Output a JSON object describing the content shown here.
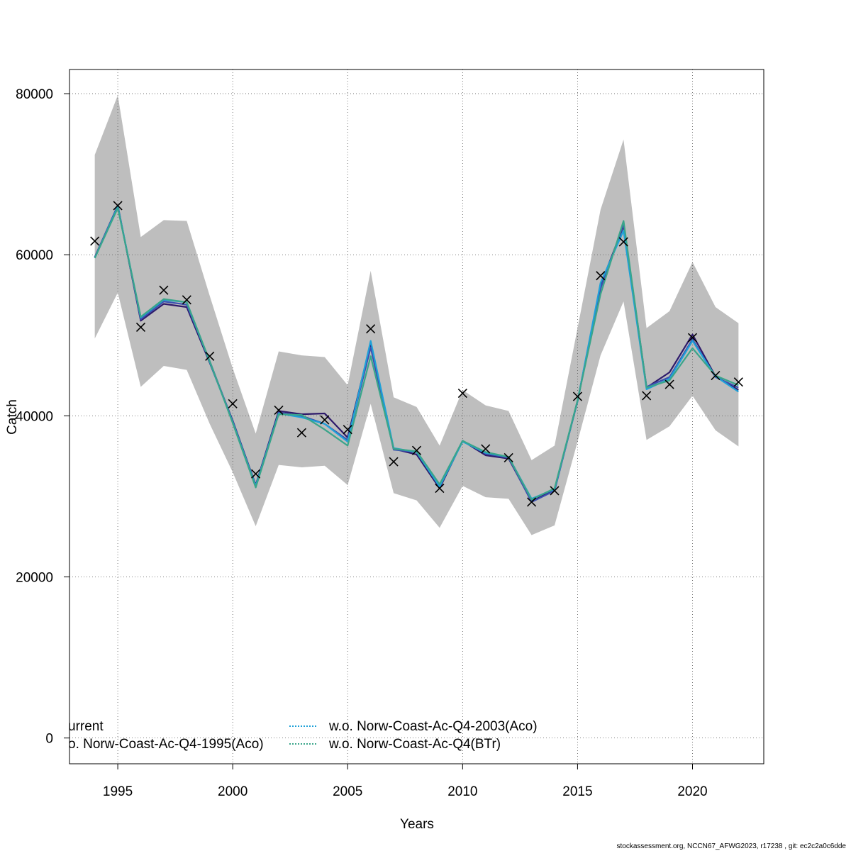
{
  "chart_data": {
    "type": "line",
    "xlabel": "Years",
    "ylabel": "Catch",
    "xlim": [
      1992.9,
      2023.1
    ],
    "ylim": [
      -3200,
      83000
    ],
    "x_ticks": [
      1995,
      2000,
      2005,
      2010,
      2015,
      2020
    ],
    "y_ticks": [
      0,
      20000,
      40000,
      60000,
      80000
    ],
    "grid": true,
    "x": [
      1994,
      1995,
      1996,
      1997,
      1998,
      1999,
      2000,
      2001,
      2002,
      2003,
      2004,
      2005,
      2006,
      2007,
      2008,
      2009,
      2010,
      2011,
      2012,
      2013,
      2014,
      2015,
      2016,
      2017,
      2018,
      2019,
      2020,
      2021,
      2022
    ],
    "band": {
      "color": "#bebebe",
      "lower": [
        49600,
        55300,
        43600,
        46200,
        45700,
        39000,
        33000,
        26300,
        33900,
        33600,
        33800,
        31400,
        41500,
        30400,
        29500,
        26100,
        31300,
        29900,
        29700,
        25200,
        26400,
        36800,
        47500,
        54200,
        37000,
        38700,
        42500,
        38200,
        36200
      ],
      "upper": [
        72400,
        79800,
        62200,
        64300,
        64200,
        54900,
        45900,
        37800,
        48000,
        47500,
        47300,
        43800,
        58000,
        42300,
        41100,
        36300,
        43200,
        41300,
        40600,
        34500,
        36300,
        50900,
        65600,
        74300,
        50900,
        53000,
        59100,
        53500,
        51500
      ]
    },
    "series": [
      {
        "name": "urrent",
        "color": "#2e1a6b",
        "values": [
          59700,
          66100,
          51800,
          53900,
          53500,
          46600,
          39400,
          31400,
          40600,
          40200,
          40300,
          37300,
          49000,
          35900,
          35200,
          31000,
          36900,
          35100,
          34700,
          29400,
          30800,
          41800,
          56200,
          63600,
          43500,
          45400,
          50100,
          44900,
          43200
        ]
      },
      {
        "name": "o. Norw-Coast-Ac-Q4-1995(Aco)",
        "color": "#3b4fb0",
        "values": [
          59700,
          66000,
          52000,
          54200,
          53800,
          46800,
          39300,
          31300,
          40400,
          40000,
          39000,
          37000,
          48500,
          35800,
          35500,
          31300,
          36900,
          35300,
          34800,
          29300,
          30700,
          41900,
          55800,
          63800,
          43600,
          44800,
          49500,
          44800,
          43500
        ]
      },
      {
        "name": "w.o. Norw-Coast-Ac-Q4-2003(Aco)",
        "color": "#1ea1d8",
        "values": [
          59600,
          66000,
          52200,
          54400,
          54100,
          46700,
          39200,
          31300,
          40300,
          39800,
          39000,
          36800,
          49300,
          36000,
          35500,
          31200,
          36800,
          35400,
          34900,
          29700,
          30900,
          41800,
          56500,
          63000,
          43300,
          44600,
          49300,
          44900,
          43000
        ]
      },
      {
        "name": "w.o. Norw-Coast-Ac-Q4(BTr)",
        "color": "#3aa58a",
        "values": [
          59600,
          65800,
          52300,
          54500,
          54100,
          46800,
          39100,
          31100,
          40200,
          40100,
          38300,
          36300,
          47400,
          35900,
          35600,
          31500,
          36900,
          35500,
          34900,
          29600,
          31000,
          41900,
          55100,
          64200,
          43500,
          44400,
          48400,
          45000,
          43800
        ]
      }
    ],
    "observed": {
      "marker": "x",
      "values": [
        61700,
        66100,
        51000,
        55600,
        54400,
        47400,
        41500,
        32800,
        40700,
        37900,
        39500,
        38300,
        50800,
        34300,
        35700,
        31000,
        42800,
        35900,
        34800,
        29300,
        30700,
        42400,
        57400,
        61600,
        42500,
        43900,
        49700,
        45000,
        44200
      ]
    },
    "legend": {
      "placement": "bottom-left",
      "entries": [
        {
          "label": "urrent",
          "color": "#2e1a6b",
          "style": "solid"
        },
        {
          "label": "o. Norw-Coast-Ac-Q4-1995(Aco)",
          "color": "#3b4fb0",
          "style": "solid"
        },
        {
          "label": "w.o. Norw-Coast-Ac-Q4-2003(Aco)",
          "color": "#1ea1d8",
          "style": "dotted"
        },
        {
          "label": "w.o. Norw-Coast-Ac-Q4(BTr)",
          "color": "#3aa58a",
          "style": "dotted"
        }
      ]
    }
  },
  "footer": "stockassessment.org, NCCN67_AFWG2023, r17238 , git: ec2c2a0c6dde"
}
